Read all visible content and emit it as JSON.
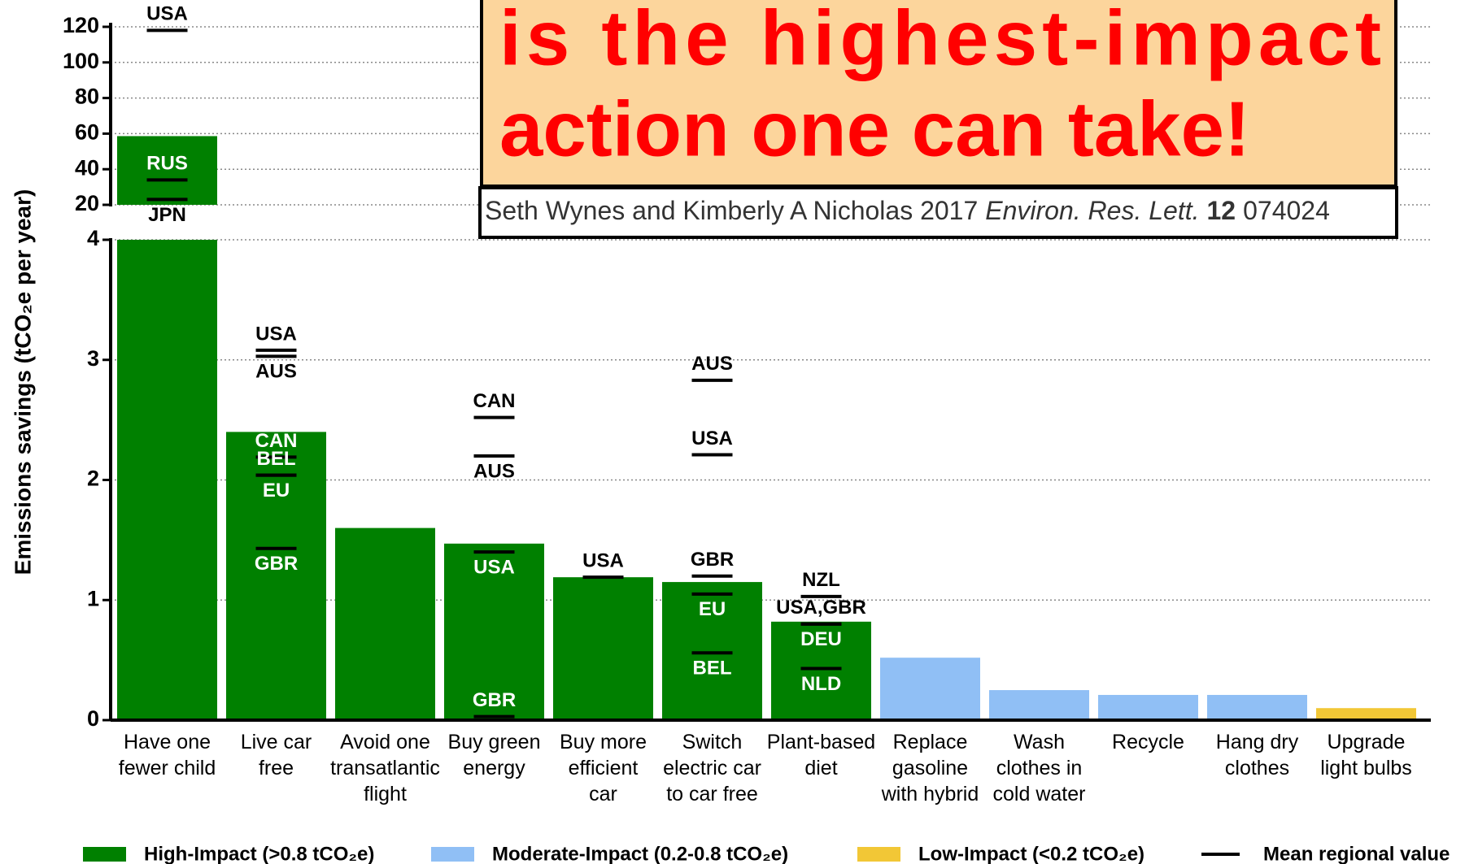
{
  "chart_data": {
    "type": "bar",
    "headline": [
      "is the highest-impact",
      "action one can take!"
    ],
    "citation": {
      "authors": "Seth Wynes and Kimberly A Nicholas 2017",
      "journal": "Environ. Res. Lett.",
      "volume": "12",
      "article": "074024"
    },
    "ylabel": "Emissions savings (tCO₂e per year)",
    "categories": [
      "Have one\nfewer child",
      "Live car\nfree",
      "Avoid one\ntransatlantic\nflight",
      "Buy green\nenergy",
      "Buy more\nefficient\ncar",
      "Switch\nelectric car\nto car free",
      "Plant-based\ndiet",
      "Replace\ngasoline\nwith hybrid",
      "Wash\nclothes in\ncold water",
      "Recycle",
      "Hang dry\nclothes",
      "Upgrade\nlight bulbs"
    ],
    "values": [
      58.6,
      2.4,
      1.6,
      1.47,
      1.19,
      1.15,
      0.82,
      0.52,
      0.25,
      0.21,
      0.21,
      0.1
    ],
    "colors": [
      "#008000",
      "#008000",
      "#008000",
      "#008000",
      "#008000",
      "#008000",
      "#008000",
      "#90bff5",
      "#90bff5",
      "#90bff5",
      "#90bff5",
      "#f2c736"
    ],
    "regional": [
      [
        {
          "label": "USA",
          "value": 118,
          "side": "above"
        },
        {
          "label": "RUS",
          "value": 34,
          "side": "above"
        },
        {
          "label": "JPN",
          "value": 23,
          "side": "below"
        }
      ],
      [
        {
          "label": "USA",
          "value": 3.08,
          "side": "above"
        },
        {
          "label": "AUS",
          "value": 3.03,
          "side": "below"
        },
        {
          "label": "CAN",
          "value": 2.19,
          "side": "above"
        },
        {
          "label": "BEL",
          "value": 2.04,
          "side": "above"
        },
        {
          "label": "EU",
          "value": 2.04,
          "side": "below"
        },
        {
          "label": "GBR",
          "value": 1.43,
          "side": "below"
        }
      ],
      [],
      [
        {
          "label": "CAN",
          "value": 2.52,
          "side": "above"
        },
        {
          "label": "AUS",
          "value": 2.2,
          "side": "below"
        },
        {
          "label": "USA",
          "value": 1.4,
          "side": "below"
        },
        {
          "label": "GBR",
          "value": 0.03,
          "side": "above"
        }
      ],
      [
        {
          "label": "USA",
          "value": 1.19,
          "side": "above"
        }
      ],
      [
        {
          "label": "AUS",
          "value": 2.83,
          "side": "above"
        },
        {
          "label": "USA",
          "value": 2.21,
          "side": "above"
        },
        {
          "label": "GBR",
          "value": 1.2,
          "side": "above"
        },
        {
          "label": "EU",
          "value": 1.05,
          "side": "below"
        },
        {
          "label": "BEL",
          "value": 0.56,
          "side": "below"
        }
      ],
      [
        {
          "label": "NZL",
          "value": 1.03,
          "side": "above"
        },
        {
          "label": "USA,GBR",
          "value": 0.8,
          "side": "above"
        },
        {
          "label": "DEU",
          "value": 0.8,
          "side": "below"
        },
        {
          "label": "NLD",
          "value": 0.43,
          "side": "below"
        }
      ],
      [],
      [],
      [],
      [],
      []
    ],
    "legend": [
      {
        "name": "High-Impact (>0.8 tCO₂e)",
        "color": "#008000"
      },
      {
        "name": "Moderate-Impact (0.2-0.8 tCO₂e)",
        "color": "#90bff5"
      },
      {
        "name": "Low-Impact (<0.2 tCO₂e)",
        "color": "#f2c736"
      }
    ],
    "mean_label": "Mean regional value",
    "ylim": [
      0,
      120
    ],
    "axis_break": [
      4,
      20
    ],
    "yticks": [
      0,
      1,
      2,
      3,
      4,
      20,
      40,
      60,
      80,
      100,
      120
    ],
    "grid": true
  }
}
